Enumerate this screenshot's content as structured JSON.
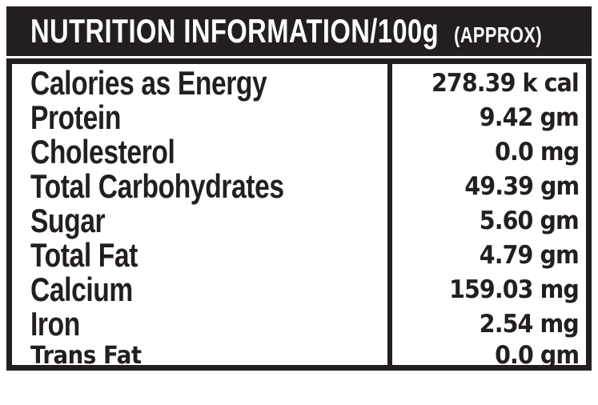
{
  "header": {
    "title": "NUTRITION INFORMATION/100g",
    "qualifier": "(APPROX)"
  },
  "nutrition_table": {
    "rows": [
      {
        "label": "Calories as Energy",
        "value": "278.39 k cal"
      },
      {
        "label": "Protein",
        "value": "9.42 gm"
      },
      {
        "label": "Cholesterol",
        "value": "0.0 mg"
      },
      {
        "label": "Total Carbohydrates",
        "value": "49.39 gm"
      },
      {
        "label": "Sugar",
        "value": "5.60 gm"
      },
      {
        "label": "Total Fat",
        "value": "4.79 gm"
      },
      {
        "label": "Calcium",
        "value": "159.03 mg"
      },
      {
        "label": "Iron",
        "value": "2.54 mg"
      },
      {
        "label": "Trans Fat",
        "value": "0.0 gm"
      }
    ]
  },
  "colors": {
    "ink": "#231f20",
    "background": "#ffffff",
    "text_on_dark": "#ffffff"
  }
}
